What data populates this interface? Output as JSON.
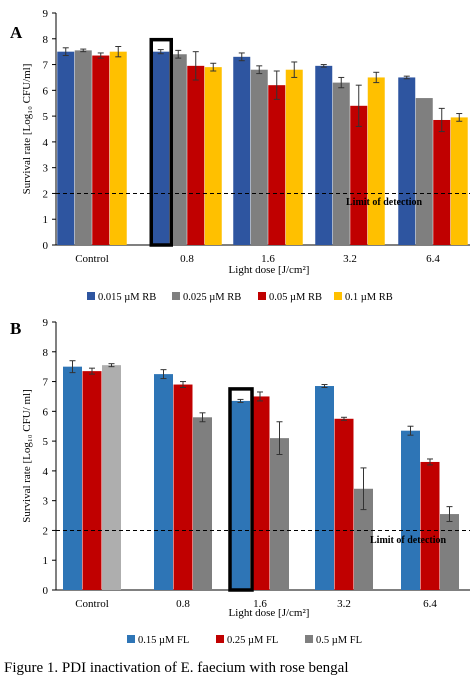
{
  "caption": "Figure 1. PDI inactivation of E. faecium with rose bengal",
  "colors": {
    "blue": "#2e55a0",
    "gray": "#7f7f7f",
    "red": "#c00000",
    "yellow": "#ffc000",
    "blueB": "#2e75b6",
    "redB": "#c00000",
    "grayB": "#7f7f7f",
    "lightGray": "#aeaeae",
    "highlight": "#000000"
  },
  "chart_data": [
    {
      "panel": "A",
      "type": "bar",
      "categories": [
        "Control",
        "0.8",
        "1.6",
        "3.2",
        "6.4"
      ],
      "xlabel": "Light dose [J/cm²]",
      "ylabel": "Survival rate [Log₁₀ CFU/ml]",
      "ylim": [
        0,
        9
      ],
      "yticks": [
        0,
        1,
        2,
        3,
        4,
        5,
        6,
        7,
        8,
        9
      ],
      "grid": false,
      "legend_position": "bottom",
      "series": [
        {
          "name": "0.015 µM RB",
          "color": "blue",
          "values": [
            7.5,
            7.5,
            7.3,
            6.95,
            6.5
          ],
          "errors": [
            0.15,
            0.08,
            0.15,
            0.05,
            0.05
          ]
        },
        {
          "name": "0.025 µM RB",
          "color": "gray",
          "values": [
            7.55,
            7.4,
            6.8,
            6.3,
            5.7
          ],
          "errors": [
            0.05,
            0.15,
            0.15,
            0.2,
            0.0
          ]
        },
        {
          "name": "0.05 µM RB",
          "color": "red",
          "values": [
            7.35,
            6.95,
            6.2,
            5.4,
            4.85
          ],
          "errors": [
            0.1,
            0.55,
            0.55,
            0.8,
            0.45
          ]
        },
        {
          "name": "0.1 µM RB",
          "color": "yellow",
          "values": [
            7.5,
            6.9,
            6.8,
            6.5,
            4.95
          ],
          "errors": [
            0.2,
            0.15,
            0.3,
            0.2,
            0.15
          ]
        }
      ],
      "reference_line": {
        "y": 2,
        "label": "Limit of detection"
      },
      "highlight_category_index": 1
    },
    {
      "panel": "B",
      "type": "bar",
      "categories": [
        "Control",
        "0.8",
        "1.6",
        "3.2",
        "6.4"
      ],
      "xlabel": "Light dose [J/cm²]",
      "ylabel": "Survival rate [Log₁₀ CFU/ ml]",
      "ylim": [
        0,
        9
      ],
      "yticks": [
        0,
        1,
        2,
        3,
        4,
        5,
        6,
        7,
        8,
        9
      ],
      "grid": false,
      "legend_position": "bottom",
      "series": [
        {
          "name": "0.15 µM FL",
          "color": "blueB",
          "values": [
            7.5,
            7.25,
            6.35,
            6.85,
            5.35
          ],
          "errors": [
            0.2,
            0.15,
            0.05,
            0.05,
            0.15
          ]
        },
        {
          "name": "0.25 µM FL",
          "color": "redB",
          "values": [
            7.35,
            6.9,
            6.5,
            5.75,
            4.3
          ],
          "errors": [
            0.1,
            0.1,
            0.15,
            0.05,
            0.1
          ]
        },
        {
          "name": "0.5 µM FL",
          "color": "grayB",
          "values": [
            7.55,
            5.8,
            5.1,
            3.4,
            2.55
          ],
          "errors": [
            0.05,
            0.15,
            0.55,
            0.7,
            0.25
          ]
        }
      ],
      "control_third_color": "lightGray",
      "reference_line": {
        "y": 2,
        "label": "Limit of detection"
      },
      "highlight_category_index": 2
    }
  ]
}
